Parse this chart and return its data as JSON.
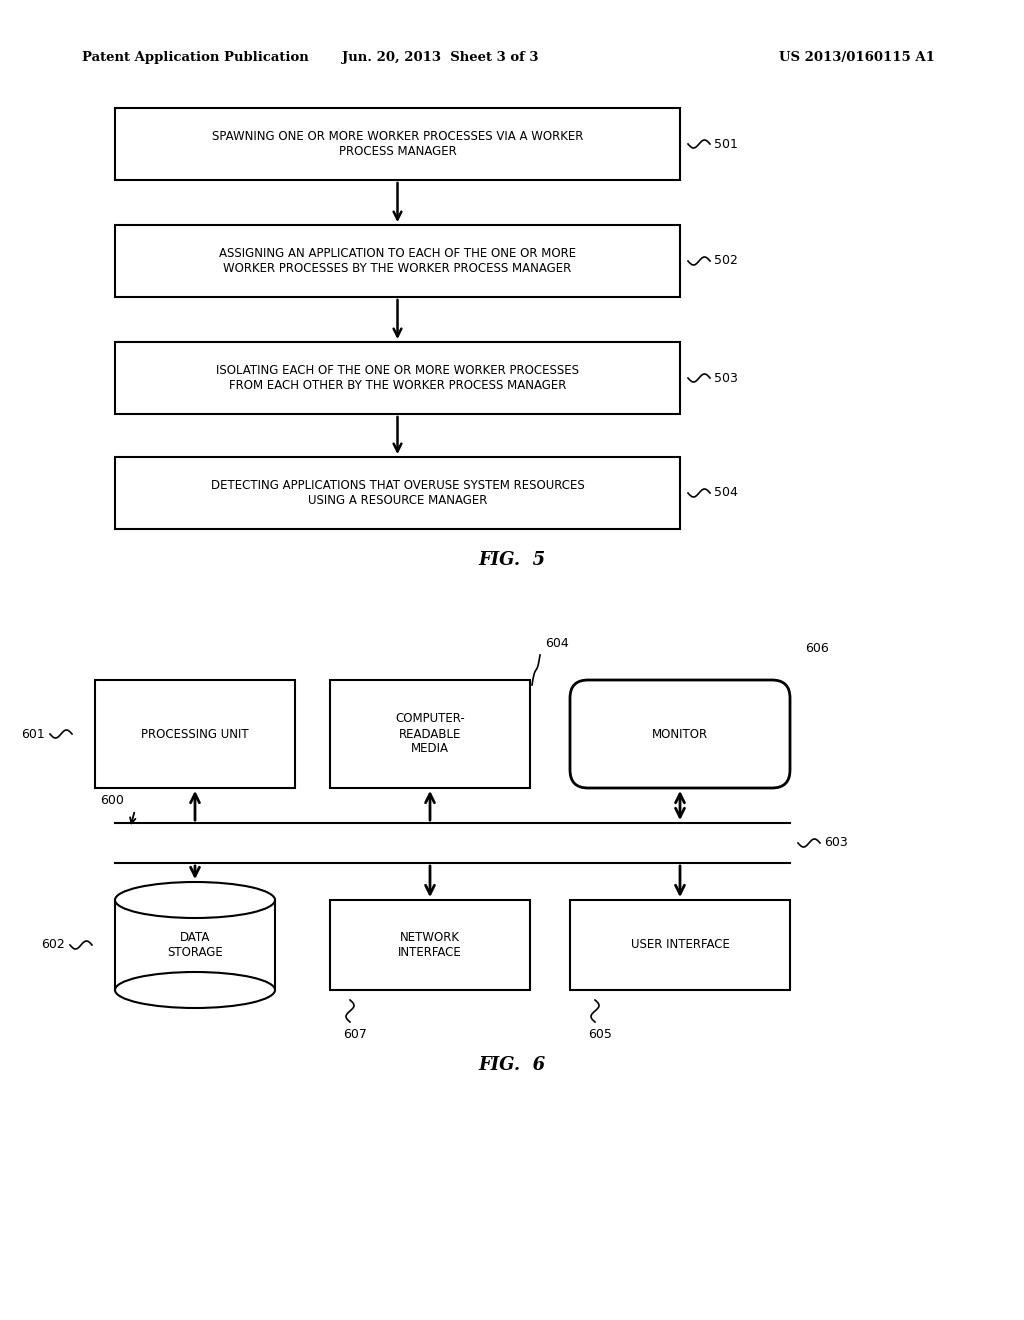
{
  "bg_color": "#ffffff",
  "header_left": "Patent Application Publication",
  "header_mid": "Jun. 20, 2013  Sheet 3 of 3",
  "header_right": "US 2013/0160115 A1",
  "fig5_caption": "FIG.  5",
  "fig6_caption": "FIG.  6",
  "fig5_boxes": [
    {
      "label": "SPAWNING ONE OR MORE WORKER PROCESSES VIA A WORKER\nPROCESS MANAGER",
      "tag": "501"
    },
    {
      "label": "ASSIGNING AN APPLICATION TO EACH OF THE ONE OR MORE\nWORKER PROCESSES BY THE WORKER PROCESS MANAGER",
      "tag": "502"
    },
    {
      "label": "ISOLATING EACH OF THE ONE OR MORE WORKER PROCESSES\nFROM EACH OTHER BY THE WORKER PROCESS MANAGER",
      "tag": "503"
    },
    {
      "label": "DETECTING APPLICATIONS THAT OVERUSE SYSTEM RESOURCES\nUSING A RESOURCE MANAGER",
      "tag": "504"
    }
  ]
}
